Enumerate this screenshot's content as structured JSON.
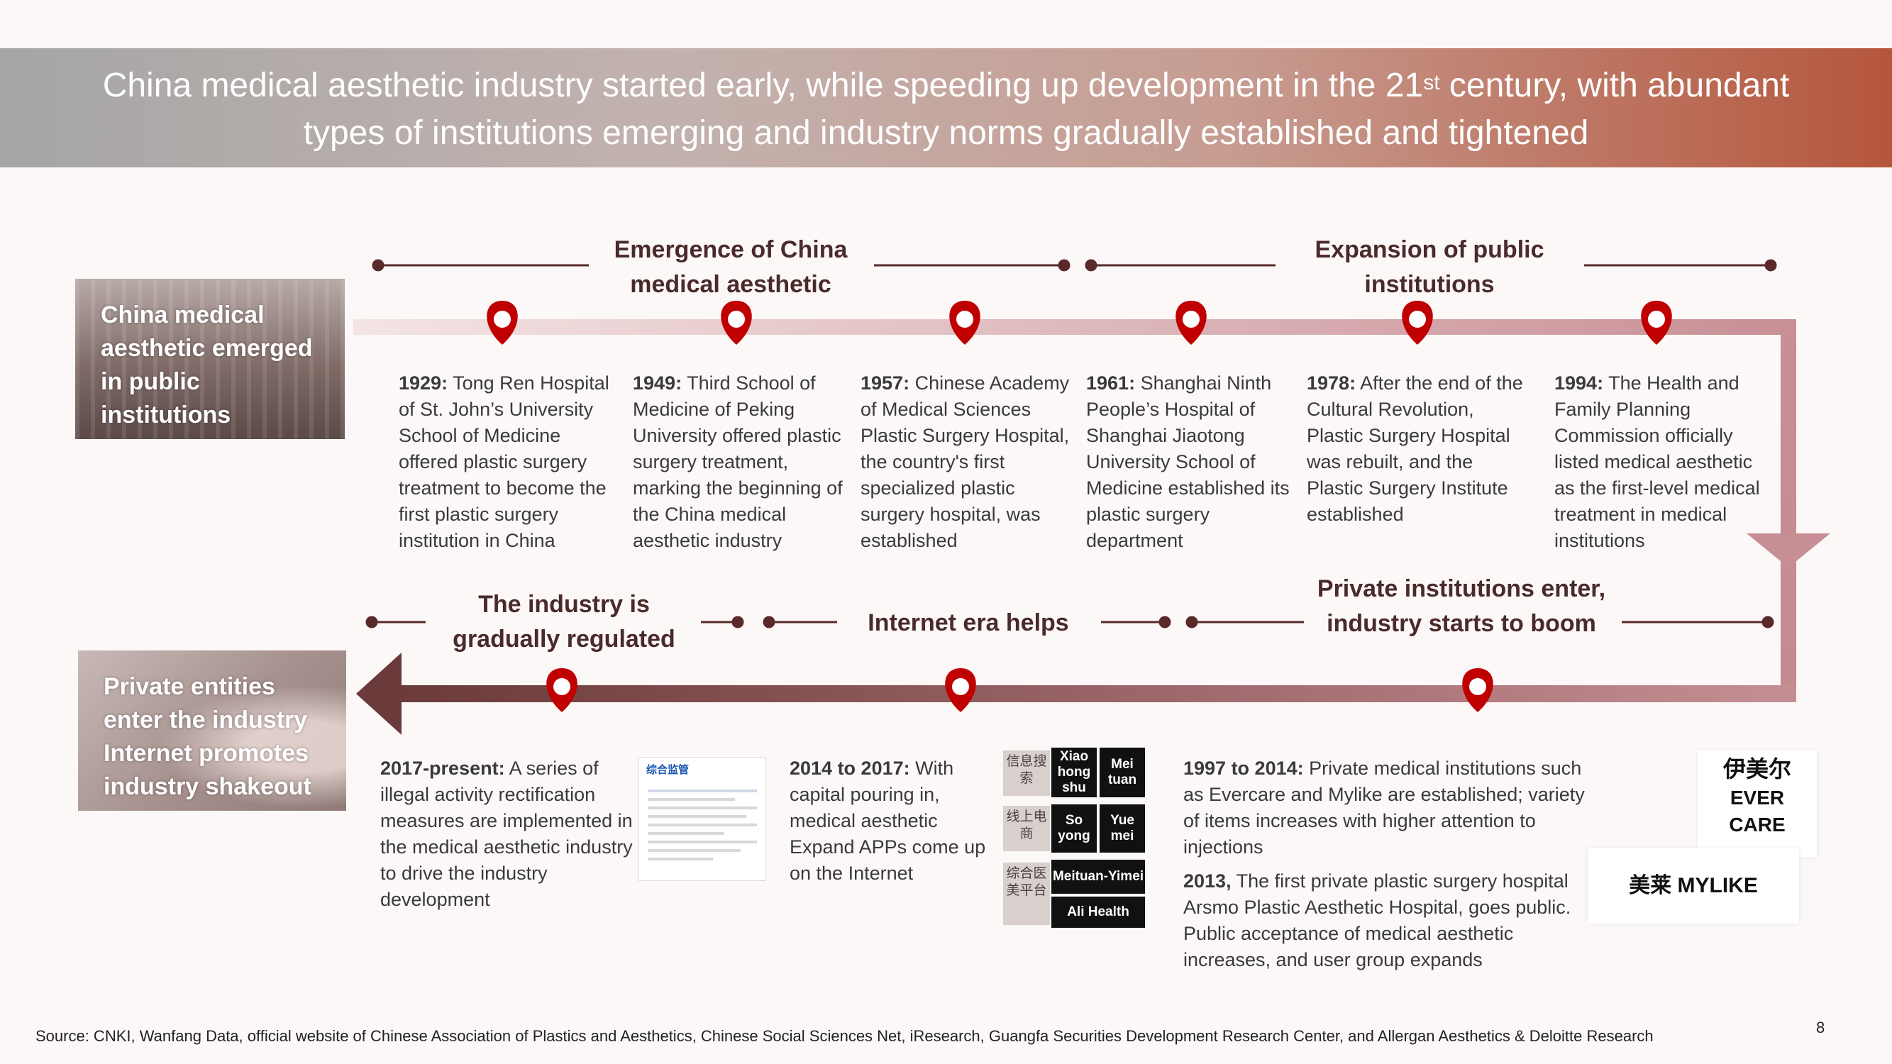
{
  "title": {
    "line1_pre": "China medical aesthetic industry started early, while speeding up development in the 21",
    "line1_sup": "st",
    "line1_post": " century, with abundant",
    "line2": "types of institutions emerging and industry norms gradually established and tightened"
  },
  "phases": {
    "emergence": "Emergence of China medical aesthetic",
    "expansion": "Expansion of public institutions",
    "regulated": "The industry is gradually regulated",
    "internet": "Internet era helps",
    "private": "Private institutions enter, industry starts to boom"
  },
  "side_boxes": {
    "top": "China medical aesthetic emerged in public institutions",
    "bottom": "Private entities enter the industry Internet promotes industry shakeout"
  },
  "events_top": [
    {
      "year": "1929:",
      "text": " Tong Ren Hospital of St. John’s University School of Medicine offered plastic surgery treatment to become the first plastic surgery institution in China"
    },
    {
      "year": "1949:",
      "text": " Third School of Medicine of Peking University offered plastic surgery treatment, marking the beginning of the China medical aesthetic industry"
    },
    {
      "year": "1957:",
      "text": " Chinese Academy of Medical Sciences Plastic Surgery Hospital, the country's first specialized plastic surgery hospital, was established"
    },
    {
      "year": "1961:",
      "text": " Shanghai Ninth People’s Hospital of Shanghai Jiaotong University School of Medicine established its plastic surgery department"
    },
    {
      "year": "1978:",
      "text": " After the end of the Cultural Revolution, Plastic Surgery Hospital was rebuilt, and the Plastic Surgery Institute established"
    },
    {
      "year": "1994:",
      "text": " The Health and Family Planning Commission officially listed medical aesthetic as the first-level medical treatment in medical institutions"
    }
  ],
  "events_bottom": {
    "e2017": {
      "year": "2017-present:",
      "text": " A series of illegal activity rectification measures are implemented in the medical aesthetic industry to drive the industry development"
    },
    "e2014": {
      "year": "2014 to 2017:",
      "text": " With capital pouring in, medical aesthetic Expand APPs come up on the Internet"
    },
    "e1997": {
      "year": "1997 to 2014:",
      "text": " Private medical institutions such as Evercare and Mylike are established; variety of items increases with higher attention to injections"
    },
    "e2013": {
      "year": "2013,",
      "text": " The first private plastic surgery hospital Arsmo Plastic Aesthetic Hospital, goes public. Public acceptance of medical aesthetic increases, and user group expands"
    }
  },
  "app_grid": {
    "categories": [
      "信息搜索",
      "线上电商",
      "综合医美平台"
    ],
    "apps": [
      "Xiao hong shu",
      "Mei tuan",
      "So yong",
      "Yue mei",
      "Meituan-Yimei",
      "Ali Health"
    ]
  },
  "logos": {
    "evercare_cn": "伊美尔",
    "evercare_en": "EVER CARE",
    "mylike": "美莱 MYLIKE"
  },
  "doc_thumb_title": "综合监管",
  "source": "Source: CNKI, Wanfang Data, official website of Chinese Association of Plastics and Aesthetics, Chinese Social Sciences Net, iResearch, Guangfa Securities Development Research Center, and Allergan Aesthetics & Deloitte Research",
  "page_number": "8",
  "colors": {
    "banner_left": "#a6a6a6",
    "banner_right": "#b5563c",
    "pin": "#c00000",
    "timeline_dark": "#6b3a3a",
    "timeline_light": "#f0dede"
  }
}
